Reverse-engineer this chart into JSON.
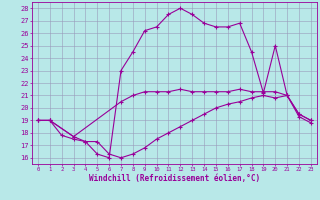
{
  "xlabel": "Windchill (Refroidissement éolien,°C)",
  "xlim": [
    -0.5,
    23.5
  ],
  "ylim": [
    15.5,
    28.5
  ],
  "xticks": [
    0,
    1,
    2,
    3,
    4,
    5,
    6,
    7,
    8,
    9,
    10,
    11,
    12,
    13,
    14,
    15,
    16,
    17,
    18,
    19,
    20,
    21,
    22,
    23
  ],
  "yticks": [
    16,
    17,
    18,
    19,
    20,
    21,
    22,
    23,
    24,
    25,
    26,
    27,
    28
  ],
  "background_color": "#b8e8e8",
  "line_color": "#990099",
  "grid_color": "#9999bb",
  "line1_x": [
    0,
    1,
    3,
    4,
    5,
    6,
    7,
    8,
    9,
    10,
    11,
    12,
    13,
    14,
    15,
    16,
    17,
    18,
    19,
    20,
    21,
    22,
    23
  ],
  "line1_y": [
    19.0,
    19.0,
    17.7,
    17.3,
    17.3,
    16.3,
    16.0,
    16.3,
    16.8,
    17.5,
    18.0,
    18.5,
    19.0,
    19.5,
    20.0,
    20.3,
    20.5,
    20.8,
    21.0,
    20.8,
    21.0,
    19.3,
    18.8
  ],
  "line2_x": [
    0,
    1,
    3,
    7,
    8,
    9,
    10,
    11,
    12,
    13,
    14,
    15,
    16,
    17,
    18,
    19,
    20,
    21,
    22,
    23
  ],
  "line2_y": [
    19.0,
    19.0,
    17.7,
    20.5,
    21.0,
    21.3,
    21.3,
    21.3,
    21.5,
    21.3,
    21.3,
    21.3,
    21.3,
    21.5,
    21.3,
    21.3,
    21.3,
    21.0,
    19.5,
    19.0
  ],
  "line3_x": [
    0,
    1,
    2,
    3,
    4,
    5,
    6,
    7,
    8,
    9,
    10,
    11,
    12,
    13,
    14,
    15,
    16,
    17,
    18,
    19,
    20,
    21,
    22,
    23
  ],
  "line3_y": [
    19.0,
    19.0,
    17.8,
    17.5,
    17.3,
    16.3,
    16.0,
    23.0,
    24.5,
    26.2,
    26.5,
    27.5,
    28.0,
    27.5,
    26.8,
    26.5,
    26.5,
    26.8,
    24.5,
    21.2,
    25.0,
    21.0,
    19.5,
    19.0
  ]
}
